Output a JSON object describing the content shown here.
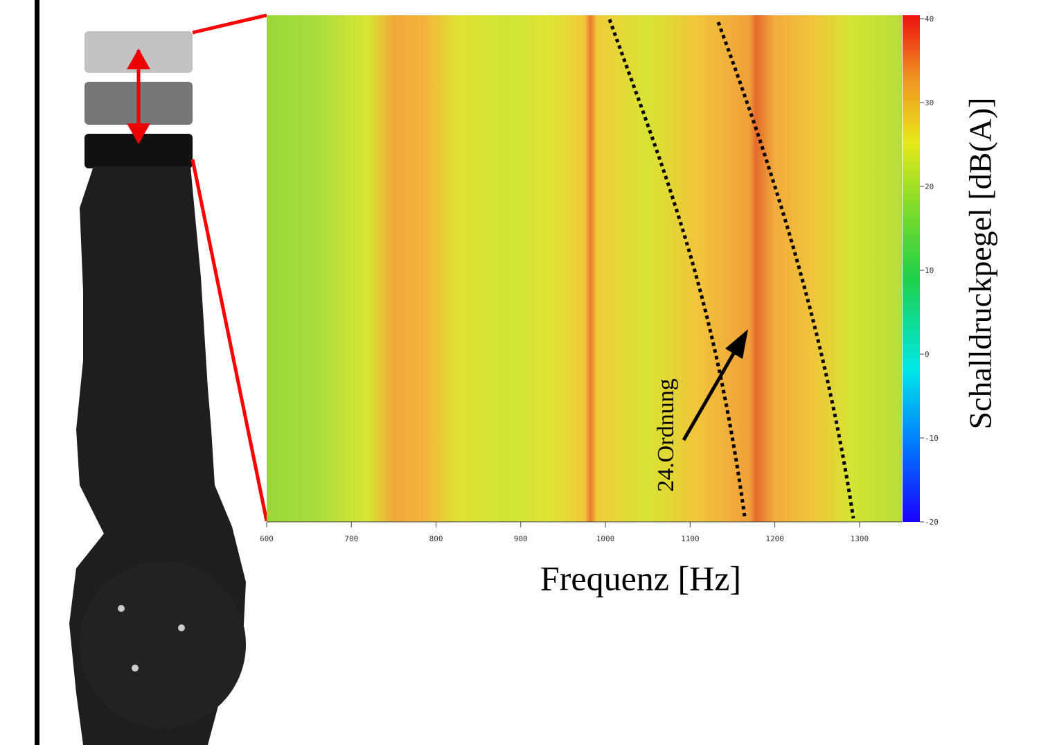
{
  "chart_data": {
    "type": "heatmap",
    "xlabel": "Frequenz [Hz]",
    "xlim": [
      600,
      1350
    ],
    "xticks": [
      600,
      700,
      800,
      900,
      1000,
      1100,
      1200,
      1300
    ],
    "colorbar_label": "Schalldruckpegel [dB(A)]",
    "clim": [
      -20,
      40
    ],
    "cticks": [
      -20,
      -10,
      0,
      10,
      20,
      30,
      40
    ],
    "annotation": "24.Ordnung"
  }
}
